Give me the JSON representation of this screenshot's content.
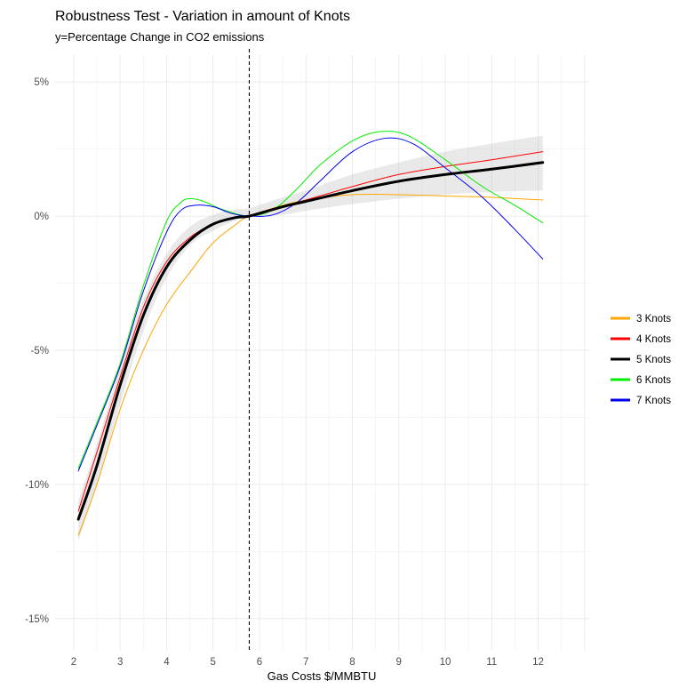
{
  "chart_data": {
    "type": "line",
    "title": "Robustness Test - Variation in amount of Knots",
    "subtitle": "y=Percentage Change in CO2 emissions",
    "xlabel": "Gas Costs $/MMBTU",
    "ylabel": "",
    "xlim": [
      1.6,
      13.1
    ],
    "ylim": [
      -16.2,
      6.0
    ],
    "x_ticks": [
      2,
      3,
      4,
      5,
      6,
      7,
      8,
      9,
      10,
      11,
      12
    ],
    "x_tick_labels": [
      "2",
      "3",
      "4",
      "5",
      "6",
      "7",
      "8",
      "9",
      "10",
      "11",
      "12"
    ],
    "y_ticks": [
      5,
      0,
      -5,
      -10,
      -15
    ],
    "y_tick_labels": [
      "5%",
      "0%",
      "-5%",
      "-10%",
      "-15%"
    ],
    "grid": true,
    "legend_position": "right",
    "reference_line": {
      "x": 5.78,
      "style": "dashed",
      "color": "#000000"
    },
    "confidence_band": {
      "series": "5 Knots",
      "color": "#bfbfbf",
      "x": [
        2.1,
        2.5,
        3.0,
        3.5,
        4.0,
        4.5,
        5.0,
        5.5,
        5.78,
        6.5,
        7.0,
        8.0,
        9.0,
        10.0,
        11.0,
        12.1
      ],
      "lower": [
        -12.1,
        -10.0,
        -7.0,
        -4.3,
        -2.3,
        -1.1,
        -0.55,
        -0.15,
        0.0,
        0.05,
        0.2,
        0.45,
        0.65,
        0.8,
        0.9,
        0.95
      ],
      "upper": [
        -10.6,
        -8.5,
        -5.6,
        -3.1,
        -1.4,
        -0.4,
        0.05,
        0.25,
        0.3,
        0.7,
        0.95,
        1.55,
        2.0,
        2.4,
        2.7,
        3.0
      ]
    },
    "series": [
      {
        "name": "3 Knots",
        "color": "#FFA500",
        "width": 1,
        "x": [
          2.1,
          2.5,
          3.0,
          3.5,
          4.0,
          4.5,
          5.0,
          5.5,
          5.78,
          6.5,
          7.0,
          8.0,
          9.0,
          10.0,
          11.0,
          12.1
        ],
        "values": [
          -11.9,
          -10.0,
          -7.2,
          -5.0,
          -3.3,
          -2.1,
          -1.0,
          -0.3,
          0.0,
          0.4,
          0.6,
          0.8,
          0.8,
          0.75,
          0.7,
          0.6
        ]
      },
      {
        "name": "4 Knots",
        "color": "#FF0000",
        "width": 1,
        "x": [
          2.1,
          2.5,
          3.0,
          3.5,
          4.0,
          4.5,
          5.0,
          5.5,
          5.78,
          6.5,
          7.0,
          8.0,
          9.0,
          10.0,
          11.0,
          12.1
        ],
        "values": [
          -11.0,
          -8.8,
          -6.0,
          -3.4,
          -1.7,
          -0.8,
          -0.3,
          -0.05,
          0.0,
          0.35,
          0.6,
          1.1,
          1.55,
          1.85,
          2.1,
          2.4
        ]
      },
      {
        "name": "5 Knots",
        "color": "#000000",
        "width": 3,
        "x": [
          2.1,
          2.5,
          3.0,
          3.5,
          4.0,
          4.5,
          5.0,
          5.5,
          5.78,
          6.5,
          7.0,
          8.0,
          9.0,
          10.0,
          11.0,
          12.1
        ],
        "values": [
          -11.3,
          -9.3,
          -6.3,
          -3.7,
          -1.9,
          -0.9,
          -0.3,
          -0.05,
          0.0,
          0.35,
          0.55,
          0.95,
          1.3,
          1.55,
          1.75,
          2.0
        ]
      },
      {
        "name": "6 Knots",
        "color": "#00EE00",
        "width": 1,
        "x": [
          2.1,
          2.5,
          3.0,
          3.5,
          4.0,
          4.3,
          4.5,
          4.8,
          5.2,
          5.78,
          6.3,
          6.8,
          7.3,
          8.0,
          8.6,
          9.2,
          10.0,
          10.8,
          11.5,
          12.1
        ],
        "values": [
          -9.4,
          -7.7,
          -5.5,
          -2.6,
          -0.2,
          0.5,
          0.65,
          0.55,
          0.25,
          0.0,
          0.25,
          1.0,
          1.9,
          2.8,
          3.15,
          3.0,
          2.1,
          1.1,
          0.4,
          -0.25
        ]
      },
      {
        "name": "7 Knots",
        "color": "#0000EE",
        "width": 1,
        "x": [
          2.1,
          2.5,
          3.0,
          3.5,
          4.0,
          4.3,
          4.6,
          5.0,
          5.4,
          5.78,
          6.3,
          6.8,
          7.3,
          8.0,
          8.7,
          9.3,
          10.0,
          10.8,
          11.5,
          12.1
        ],
        "values": [
          -9.5,
          -7.8,
          -5.6,
          -2.8,
          -0.6,
          0.2,
          0.4,
          0.35,
          0.1,
          0.0,
          0.05,
          0.5,
          1.3,
          2.4,
          2.9,
          2.7,
          1.8,
          0.7,
          -0.5,
          -1.6
        ]
      }
    ]
  }
}
